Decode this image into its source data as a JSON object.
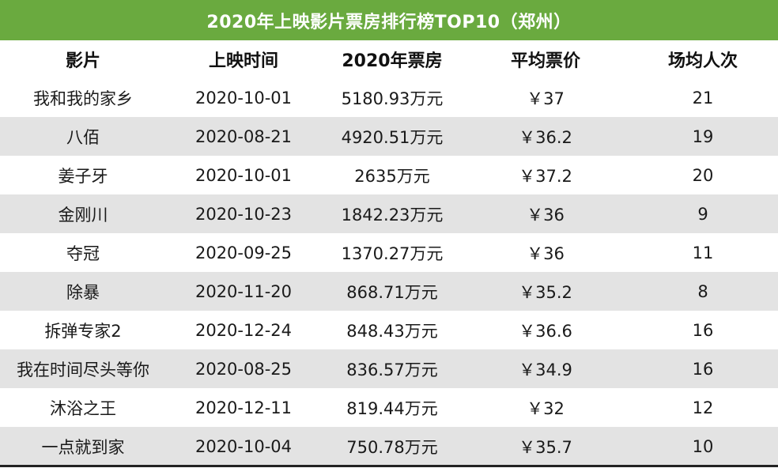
{
  "title": "2020年上映影片票房排行榜TOP10（郑州）",
  "colors": {
    "title_bg": "#6aaa3f",
    "shaded_row": "#e3e3e3",
    "plain_row": "#ffffff"
  },
  "chart_data": {
    "type": "table",
    "title": "2020年上映影片票房排行榜TOP10（郑州）",
    "columns": [
      "影片",
      "上映时间",
      "2020年票房",
      "平均票价",
      "场均人次"
    ],
    "rows": [
      [
        "我和我的家乡",
        "2020-10-01",
        "5180.93万元",
        "￥37",
        "21"
      ],
      [
        "八佰",
        "2020-08-21",
        "4920.51万元",
        "￥36.2",
        "19"
      ],
      [
        "姜子牙",
        "2020-10-01",
        "2635万元",
        "￥37.2",
        "20"
      ],
      [
        "金刚川",
        "2020-10-23",
        "1842.23万元",
        "￥36",
        "9"
      ],
      [
        "夺冠",
        "2020-09-25",
        "1370.27万元",
        "￥36",
        "11"
      ],
      [
        "除暴",
        "2020-11-20",
        "868.71万元",
        "￥35.2",
        "8"
      ],
      [
        "拆弹专家2",
        "2020-12-24",
        "848.43万元",
        "￥36.6",
        "16"
      ],
      [
        "我在时间尽头等你",
        "2020-08-25",
        "836.57万元",
        "￥34.9",
        "16"
      ],
      [
        "沐浴之王",
        "2020-12-11",
        "819.44万元",
        "￥32",
        "12"
      ],
      [
        "一点就到家",
        "2020-10-04",
        "750.78万元",
        "￥35.7",
        "10"
      ]
    ]
  }
}
